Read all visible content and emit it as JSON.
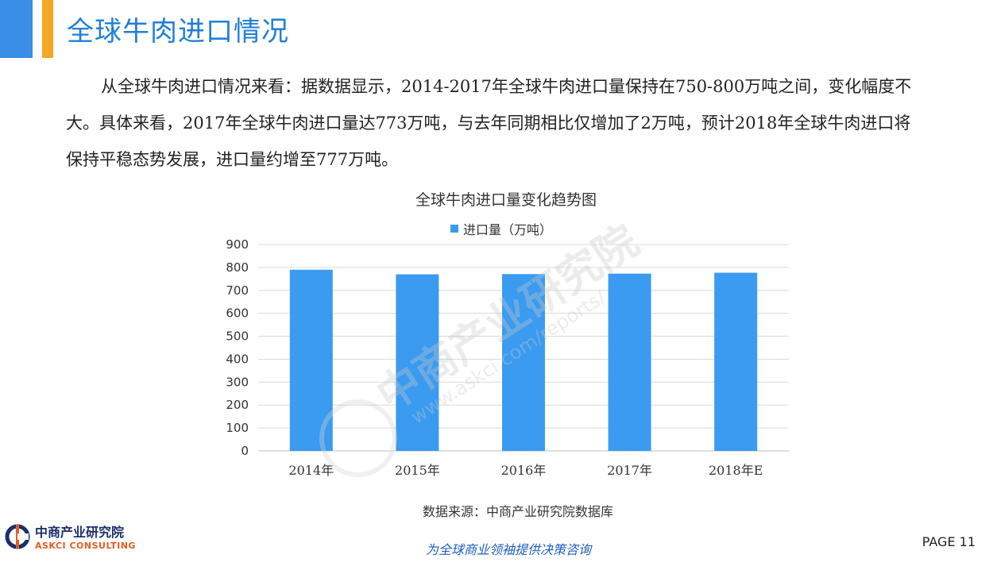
{
  "page": {
    "title": "全球牛肉进口情况",
    "intro": "从全球牛肉进口情况来看：据数据显示，2014-2017年全球牛肉进口量保持在750-800万吨之间，变化幅度不大。具体来看，2017年全球牛肉进口量达773万吨，与去年同期相比仅增加了2万吨，预计2018年全球牛肉进口将保持平稳态势发展，进口量约增至777万吨。",
    "source": "数据来源：中商产业研究院数据库",
    "slogan": "为全球商业领袖提供决策咨询",
    "page_label": "PAGE  11",
    "logo_cn": "中商产业研究院",
    "logo_en": "ASKCI CONSULTING",
    "watermark_cn": "中商产业研究院",
    "watermark_url": "www.askci.com/reports/"
  },
  "chart_data": {
    "type": "bar",
    "title": "全球牛肉进口量变化趋势图",
    "categories": [
      "2014年",
      "2015年",
      "2016年",
      "2017年",
      "2018年E"
    ],
    "series": [
      {
        "name": "进口量（万吨）",
        "values": [
          790,
          770,
          771,
          773,
          777
        ],
        "color": "#3a9bf0"
      }
    ],
    "ylim": [
      0,
      900
    ],
    "yticks": [
      "0",
      "100",
      "200",
      "300",
      "400",
      "500",
      "600",
      "700",
      "800",
      "900"
    ],
    "grid": true,
    "legend": "top"
  },
  "colors": {
    "accent_blue": "#3a8ee6",
    "accent_orange": "#f5a623",
    "title_blue": "#1f7fd6",
    "bar": "#3a9bf0"
  }
}
